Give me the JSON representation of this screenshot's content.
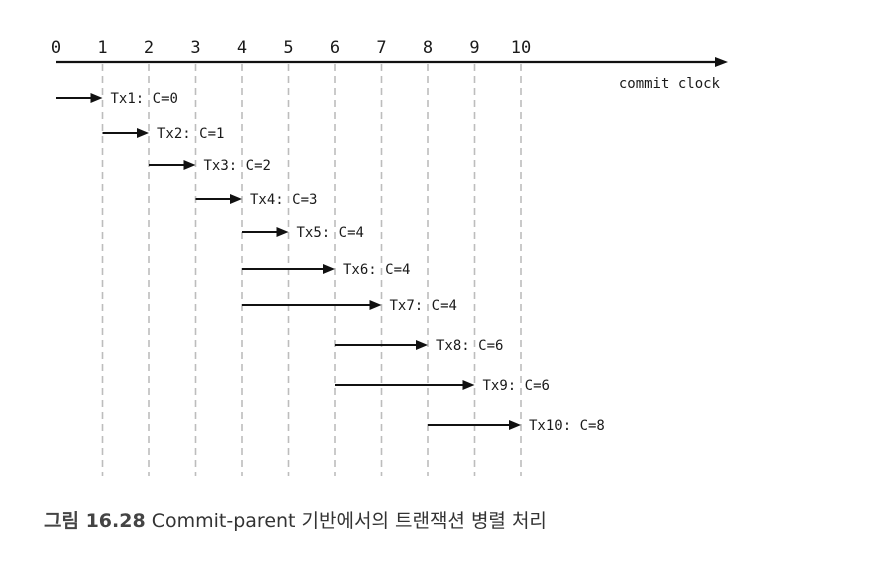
{
  "chart_data": {
    "type": "timeline",
    "axis": {
      "label": "commit clock",
      "ticks": [
        0,
        1,
        2,
        3,
        4,
        5,
        6,
        7,
        8,
        9,
        10
      ]
    },
    "transactions": [
      {
        "label": "Tx1: C=0",
        "start": 0,
        "end": 1
      },
      {
        "label": "Tx2: C=1",
        "start": 1,
        "end": 2
      },
      {
        "label": "Tx3: C=2",
        "start": 2,
        "end": 3
      },
      {
        "label": "Tx4: C=3",
        "start": 3,
        "end": 4
      },
      {
        "label": "Tx5: C=4",
        "start": 4,
        "end": 5
      },
      {
        "label": "Tx6: C=4",
        "start": 4,
        "end": 6
      },
      {
        "label": "Tx7: C=4",
        "start": 4,
        "end": 7
      },
      {
        "label": "Tx8: C=6",
        "start": 6,
        "end": 8
      },
      {
        "label": "Tx9: C=6",
        "start": 6,
        "end": 9
      },
      {
        "label": "Tx10: C=8",
        "start": 8,
        "end": 10
      }
    ]
  },
  "caption": {
    "figure_number": "그림 16.28",
    "text": "Commit-parent 기반에서의 트랜잭션 병렬 처리"
  }
}
